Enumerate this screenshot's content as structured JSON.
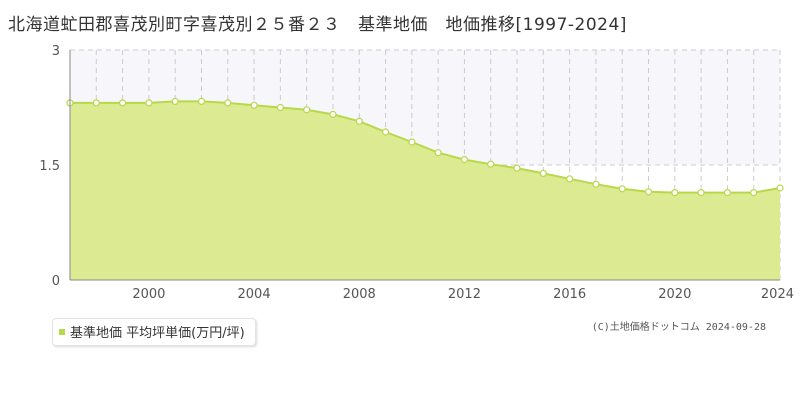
{
  "title": "北海道虻田郡喜茂別町字喜茂別２５番２３　基準地価　地価推移[1997-2024]",
  "legend_label": "基準地価 平均坪単価(万円/坪)",
  "copyright": "(C)土地価格ドットコム 2024-09-28",
  "colors": {
    "fill": "#dcea91",
    "line": "#b8d84a",
    "marker_stroke": "#b8d84a",
    "marker_fill": "#ffffff",
    "grid": "#cccccc",
    "axis": "#888888",
    "upper_band": "#f7f7fb"
  },
  "chart_data": {
    "type": "area",
    "x": [
      1997,
      1998,
      1999,
      2000,
      2001,
      2002,
      2003,
      2004,
      2005,
      2006,
      2007,
      2008,
      2009,
      2010,
      2011,
      2012,
      2013,
      2014,
      2015,
      2016,
      2017,
      2018,
      2019,
      2020,
      2021,
      2022,
      2023,
      2024
    ],
    "values": [
      2.31,
      2.31,
      2.31,
      2.31,
      2.33,
      2.33,
      2.31,
      2.28,
      2.25,
      2.22,
      2.16,
      2.07,
      1.93,
      1.8,
      1.66,
      1.57,
      1.51,
      1.46,
      1.39,
      1.32,
      1.25,
      1.19,
      1.15,
      1.14,
      1.14,
      1.14,
      1.14,
      1.2
    ],
    "xlim": [
      1997,
      2024
    ],
    "ylim": [
      0,
      3
    ],
    "x_ticks": [
      2000,
      2004,
      2008,
      2012,
      2016,
      2020,
      2024
    ],
    "x_tick_labels": [
      "2000",
      "2004",
      "2008",
      "2012",
      "2016",
      "2020",
      "2024"
    ],
    "y_ticks": [
      0,
      1.5,
      3
    ],
    "y_tick_labels": [
      "0",
      "1.5",
      "3"
    ],
    "grid": true
  }
}
